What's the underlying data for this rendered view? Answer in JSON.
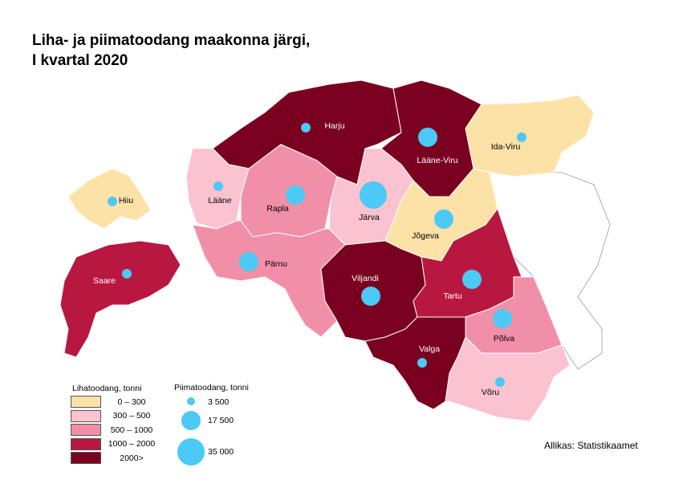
{
  "title": {
    "line1": "Liha- ja piimatoodang maakonna järgi,",
    "line2": "I kvartal 2020"
  },
  "counties": [
    {
      "name": "Harju",
      "meat_class": 4,
      "milk_class": 3500
    },
    {
      "name": "Lääne-Viru",
      "meat_class": 4,
      "milk_class": 17500
    },
    {
      "name": "Ida-Viru",
      "meat_class": 0,
      "milk_class": 3500
    },
    {
      "name": "Hiiu",
      "meat_class": 0,
      "milk_class": 3500
    },
    {
      "name": "Lääne",
      "meat_class": 1,
      "milk_class": 3500
    },
    {
      "name": "Rapla",
      "meat_class": 2,
      "milk_class": 17500
    },
    {
      "name": "Järva",
      "meat_class": 1,
      "milk_class": 35000
    },
    {
      "name": "Jõgeva",
      "meat_class": 0,
      "milk_class": 17500
    },
    {
      "name": "Pärnu",
      "meat_class": 2,
      "milk_class": 17500
    },
    {
      "name": "Saare",
      "meat_class": 3,
      "milk_class": 3500
    },
    {
      "name": "Viljandi",
      "meat_class": 4,
      "milk_class": 17500
    },
    {
      "name": "Tartu",
      "meat_class": 3,
      "milk_class": 17500
    },
    {
      "name": "Põlva",
      "meat_class": 2,
      "milk_class": 17500
    },
    {
      "name": "Valga",
      "meat_class": 4,
      "milk_class": 3500
    },
    {
      "name": "Võru",
      "meat_class": 1,
      "milk_class": 3500
    }
  ],
  "meat_legend": {
    "title": "Lihatoodang, tonni",
    "classes": [
      {
        "label": "0 –   300",
        "color": "#fde2a8"
      },
      {
        "label": "300 –   500",
        "color": "#fbc2d0"
      },
      {
        "label": "500 – 1000",
        "color": "#f28fa8"
      },
      {
        "label": "1000 – 2000",
        "color": "#b8183f"
      },
      {
        "label": "2000>",
        "color": "#7a0020"
      }
    ]
  },
  "milk_legend": {
    "title": "Piimatoodang, tonni",
    "bubble_color": "#4cc9f5",
    "items": [
      {
        "label": "3 500",
        "value": 3500
      },
      {
        "label": "17 500",
        "value": 17500
      },
      {
        "label": "35 000",
        "value": 35000
      }
    ]
  },
  "source": "Allikas: Statistikaamet"
}
